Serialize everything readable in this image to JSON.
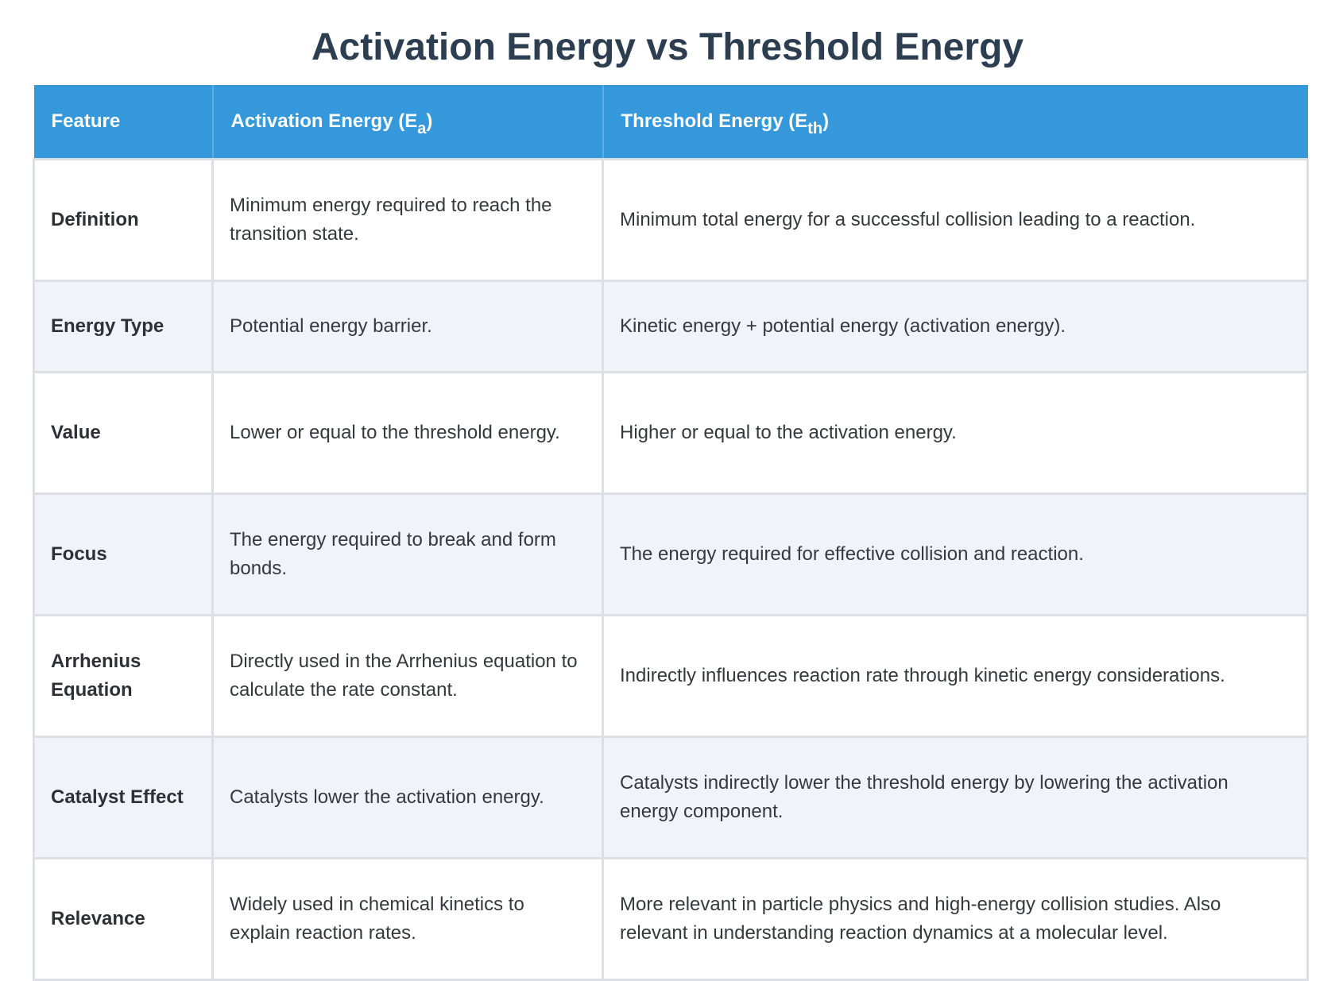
{
  "title": "Activation Energy vs Threshold Energy",
  "table": {
    "headers": {
      "feature": "Feature",
      "activation_main": "Activation Energy (E",
      "activation_sub": "a",
      "activation_close": ")",
      "threshold_main": "Threshold Energy (E",
      "threshold_sub": "th",
      "threshold_close": ")"
    },
    "rows": [
      {
        "feature": "Definition",
        "activation": "Minimum energy required to reach the transition state.",
        "threshold": "Minimum total energy for a successful collision leading to a reaction."
      },
      {
        "feature": "Energy Type",
        "activation": "Potential energy barrier.",
        "threshold": "Kinetic energy + potential energy (activation energy)."
      },
      {
        "feature": "Value",
        "activation": "Lower or equal to the threshold energy.",
        "threshold": "Higher or equal to the activation energy."
      },
      {
        "feature": "Focus",
        "activation": "The energy required to break and form bonds.",
        "threshold": "The energy required for effective collision and reaction."
      },
      {
        "feature": "Arrhenius Equation",
        "activation": "Directly used in the Arrhenius equation to calculate the rate constant.",
        "threshold": "Indirectly influences reaction rate through kinetic energy considerations."
      },
      {
        "feature": "Catalyst Effect",
        "activation": "Catalysts lower the activation energy.",
        "threshold": "Catalysts indirectly lower the threshold energy by lowering the activation energy component."
      },
      {
        "feature": "Relevance",
        "activation": "Widely used in chemical kinetics to explain reaction rates.",
        "threshold": "More relevant in particle physics and high-energy collision studies. Also relevant in understanding reaction dynamics at a molecular level."
      }
    ]
  },
  "colors": {
    "title": "#2c3e50",
    "header_background": "#3498db",
    "header_text": "#ffffff",
    "row_alt_background": "#f0f4f8",
    "border": "#dcdfe3"
  }
}
